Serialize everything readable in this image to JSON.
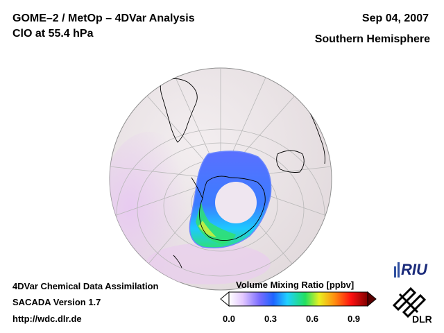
{
  "header": {
    "title_line1": "GOME–2 / MetOp – 4DVar Analysis",
    "title_line2": "ClO at 55.4 hPa",
    "date": "Sep 04, 2007",
    "region": "Southern Hemisphere"
  },
  "footer": {
    "line1": "4DVar Chemical Data Assimilation",
    "line2": "SACADA Version 1.7",
    "line3": "http://wdc.dlr.de"
  },
  "colorbar": {
    "title": "Volume Mixing Ratio [ppbv]",
    "ticks": [
      "0.0",
      "0.3",
      "0.6",
      "0.9"
    ],
    "tick_values": [
      0.0,
      0.3,
      0.6,
      0.9
    ],
    "min": 0.0,
    "max": 1.0,
    "colors": [
      "#ffffff",
      "#c8a0ff",
      "#6040ff",
      "#1060ff",
      "#20d0ff",
      "#20e060",
      "#e0ff20",
      "#ff8000",
      "#ff0000",
      "#800000"
    ]
  },
  "logos": {
    "riu": "RIU",
    "dlr": "DLR"
  },
  "colors": {
    "ocean": "#ece6e8",
    "land_outline": "#000000",
    "grid": "#b8b8b8"
  }
}
